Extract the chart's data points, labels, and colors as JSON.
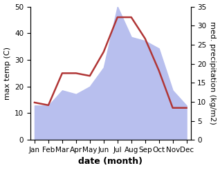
{
  "months": [
    "Jan",
    "Feb",
    "Mar",
    "Apr",
    "May",
    "Jun",
    "Jul",
    "Aug",
    "Sep",
    "Oct",
    "Nov",
    "Dec"
  ],
  "temperature": [
    14,
    13,
    25,
    25,
    24,
    33,
    46,
    46,
    38,
    26,
    12,
    12
  ],
  "precipitation": [
    9,
    9,
    13,
    12,
    14,
    19,
    35,
    27,
    26,
    24,
    13,
    9
  ],
  "temp_color": "#b03535",
  "precip_fill_color": "#b8bfee",
  "temp_ylim": [
    0,
    50
  ],
  "precip_ylim": [
    0,
    35
  ],
  "temp_yticks": [
    0,
    10,
    20,
    30,
    40,
    50
  ],
  "precip_yticks": [
    0,
    5,
    10,
    15,
    20,
    25,
    30,
    35
  ],
  "xlabel": "date (month)",
  "ylabel_left": "max temp (C)",
  "ylabel_right": "med. precipitation (kg/m2)",
  "axis_fontsize": 8,
  "tick_fontsize": 7.5,
  "xlabel_fontsize": 9
}
